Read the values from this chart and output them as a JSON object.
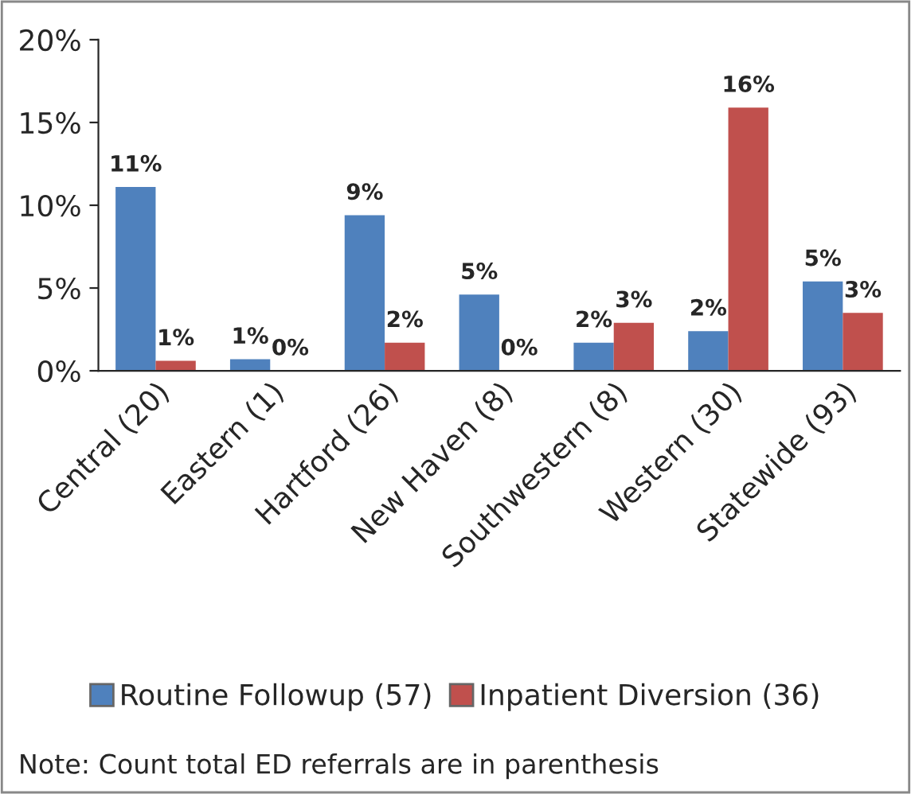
{
  "chart_data": {
    "type": "bar",
    "categories": [
      "Central (20)",
      "Eastern (1)",
      "Hartford (26)",
      "New Haven (8)",
      "Southwestern (8)",
      "Western (30)",
      "Statewide (93)"
    ],
    "series": [
      {
        "name": "Routine Followup (57)",
        "color": "#4f81bd",
        "values": [
          11.1,
          0.7,
          9.4,
          4.6,
          1.7,
          2.4,
          5.4
        ],
        "value_labels": [
          "11%",
          "1%",
          "9%",
          "5%",
          "2%",
          "2%",
          "5%"
        ]
      },
      {
        "name": "Inpatient Diversion (36)",
        "color": "#c0504d",
        "values": [
          0.6,
          0,
          1.7,
          0,
          2.9,
          15.9,
          3.5
        ],
        "value_labels": [
          "1%",
          "0%",
          "2%",
          "0%",
          "3%",
          "16%",
          "3%"
        ]
      }
    ],
    "ylim": [
      0,
      20
    ],
    "yticks": [
      {
        "value": 0,
        "label": "0%"
      },
      {
        "value": 5,
        "label": "5%"
      },
      {
        "value": 10,
        "label": "10%"
      },
      {
        "value": 15,
        "label": "15%"
      },
      {
        "value": 20,
        "label": "20%"
      }
    ],
    "grid": false,
    "legend": "bottom",
    "annotations": [
      "Note: Count total ED referrals are in parenthesis"
    ]
  }
}
